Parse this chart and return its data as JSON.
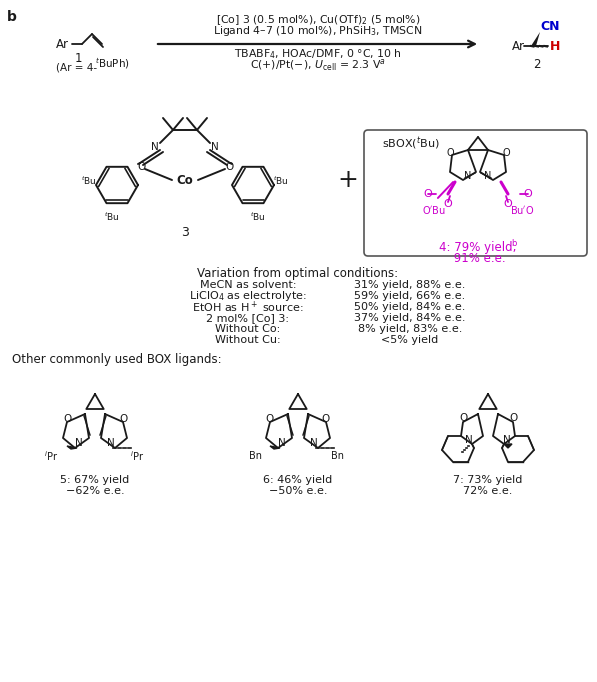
{
  "bg_color": "#ffffff",
  "dark": "#1a1a1a",
  "magenta": "#cc00cc",
  "blue": "#0000cd",
  "red": "#cc0000",
  "gray_box": "#444444",
  "rxn_text1": "[Co] 3 (0.5 mol%), Cu(OTf)$_2$ (5 mol%)",
  "rxn_text2": "Ligand 4–7 (10 mol%), PhSiH$_3$, TMSCN",
  "rxn_text3": "TBABF$_4$, HOAc/DMF, 0 °C, 10 h",
  "rxn_text4": "C(+)/Pt(−), $U_{\\mathrm{cell}}$ = 2.3 V$^a$",
  "variation_title": "Variation from optimal conditions:",
  "variation_labels": [
    "MeCN as solvent:",
    "LiClO$_4$ as electrolyte:",
    "EtOH as H$^+$ source:",
    "2 mol% [Co] 3:",
    "Without Co:",
    "Without Cu:"
  ],
  "variation_results": [
    "31% yield, 88% e.e.",
    "59% yield, 66% e.e.",
    "50% yield, 84% e.e.",
    "37% yield, 84% e.e.",
    "8% yield, 83% e.e.",
    "<5% yield"
  ],
  "other_title": "Other commonly used BOX ligands:",
  "lig5_name": "5: 67% yield",
  "lig5_ee": "−62% e.e.",
  "lig6_name": "6: 46% yield",
  "lig6_ee": "−50% e.e.",
  "lig7_name": "7: 73% yield",
  "lig7_ee": "72% e.e.",
  "comp4_text": "4: 79% yield,",
  "comp4_sup": "b",
  "comp4_ee": " 91% e.e.",
  "sbox_label": "sBOX($^t$Bu)"
}
